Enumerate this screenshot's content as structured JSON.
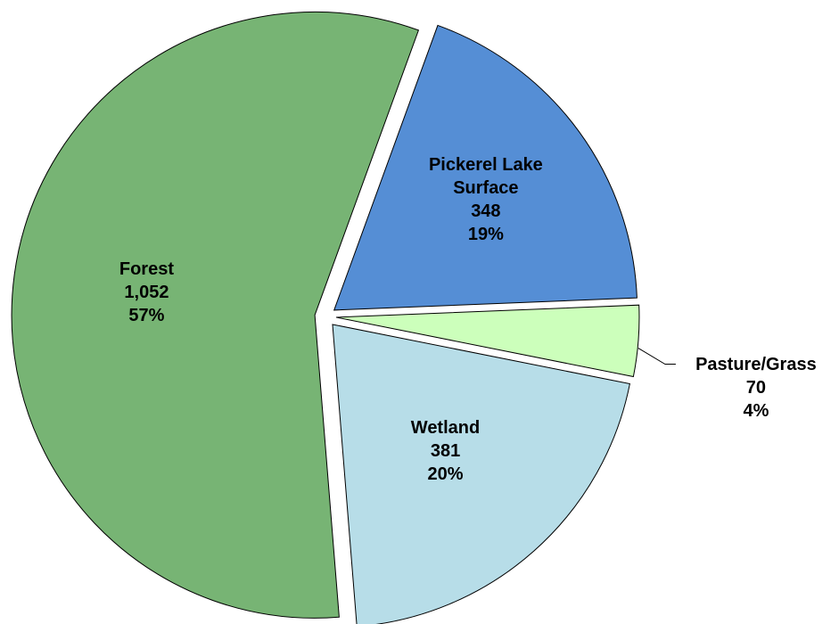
{
  "chart_data": {
    "type": "pie",
    "categories": [
      "Pickerel Lake Surface",
      "Pasture/Grass",
      "Wetland",
      "Forest"
    ],
    "values": [
      348,
      70,
      381,
      1052
    ],
    "value_labels": [
      "348",
      "70",
      "381",
      "1,052"
    ],
    "percents": [
      19,
      4,
      20,
      57
    ],
    "percent_labels": [
      "19%",
      "4%",
      "20%",
      "57%"
    ],
    "colors": [
      "#558ed5",
      "#ccffbb",
      "#b7dde8",
      "#77b474"
    ]
  }
}
